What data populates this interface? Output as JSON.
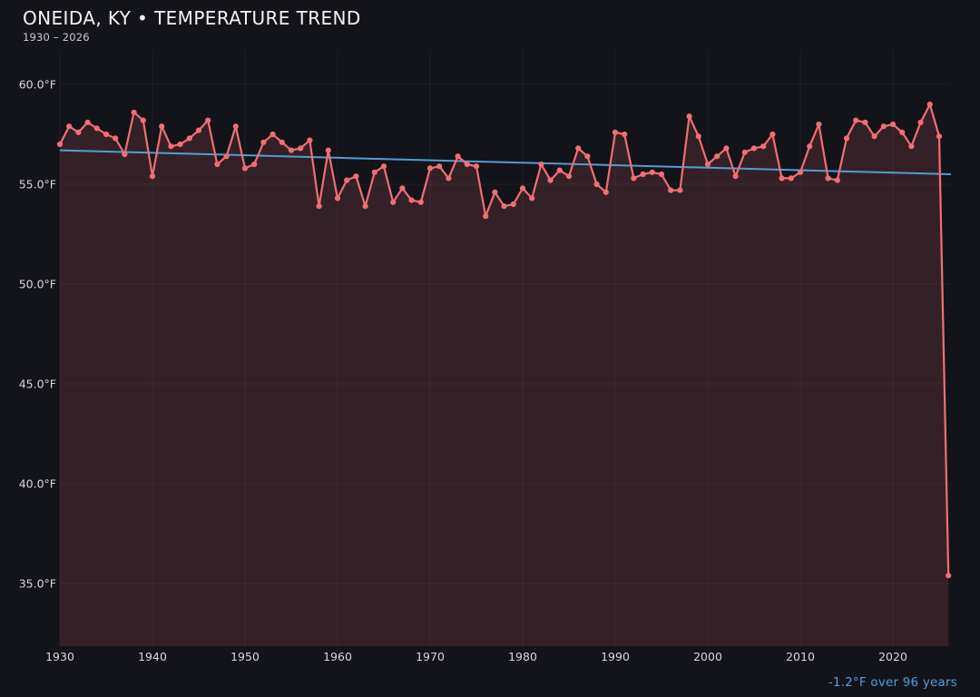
{
  "header": {
    "title": "ONEIDA, KY • TEMPERATURE TREND",
    "subtitle": "1930 – 2026"
  },
  "footer": {
    "trend_note": "-1.2°F over 96 years"
  },
  "colors": {
    "background": "#13131a",
    "series_line": "#ef6f74",
    "area_fill": "rgba(239,111,116,0.15)",
    "trend_line": "#4f9fd4",
    "axis_text": "#d6d6da",
    "title_text": "#f4f4f6",
    "subtitle_text": "#c9c9ce",
    "note_text": "#4da0d8",
    "gridline": "rgba(255,255,255,0.05)"
  },
  "chart_data": {
    "type": "line",
    "title": "ONEIDA, KY • TEMPERATURE TREND",
    "subtitle": "1930 – 2026",
    "xlabel": "",
    "ylabel": "°F",
    "grid": true,
    "legend": "none",
    "year_range": [
      1930,
      2026
    ],
    "x_ticks": [
      1930,
      1940,
      1950,
      1960,
      1970,
      1980,
      1990,
      2000,
      2010,
      2020
    ],
    "y_ticks": [
      {
        "value": 60,
        "label": "60.0°F"
      },
      {
        "value": 55,
        "label": "55.0°F"
      },
      {
        "value": 50,
        "label": "50.0°F"
      },
      {
        "value": 45,
        "label": "45.0°F"
      },
      {
        "value": 40,
        "label": "40.0°F"
      },
      {
        "value": 35,
        "label": "35.0°F"
      }
    ],
    "ylim": [
      31.9,
      61.7
    ],
    "series": [
      {
        "name": "annual-mean-temperature-f",
        "style": "line-with-markers",
        "values": [
          57.0,
          57.9,
          57.6,
          58.1,
          57.8,
          57.5,
          57.3,
          56.5,
          58.6,
          58.2,
          55.4,
          57.9,
          56.9,
          57.0,
          57.3,
          57.7,
          58.2,
          56.0,
          56.4,
          57.9,
          55.8,
          56.0,
          57.1,
          57.5,
          57.1,
          56.7,
          56.8,
          57.2,
          53.9,
          56.7,
          54.3,
          55.2,
          55.4,
          53.9,
          55.6,
          55.9,
          54.1,
          54.8,
          54.2,
          54.1,
          55.8,
          55.9,
          55.3,
          56.4,
          56.0,
          55.9,
          53.4,
          54.6,
          53.9,
          54.0,
          54.8,
          54.3,
          56.0,
          55.2,
          55.7,
          55.4,
          56.8,
          56.4,
          55.0,
          54.6,
          57.6,
          57.5,
          55.3,
          55.5,
          55.6,
          55.5,
          54.7,
          54.7,
          58.4,
          57.4,
          56.0,
          56.4,
          56.8,
          55.4,
          56.6,
          56.8,
          56.9,
          57.5,
          55.3,
          55.3,
          55.6,
          56.9,
          58.0,
          55.3,
          55.2,
          57.3,
          58.2,
          58.1,
          57.4,
          57.9,
          58.0,
          57.6,
          56.9,
          58.1,
          59.0,
          57.4,
          35.4
        ]
      },
      {
        "name": "linear-trend",
        "style": "straight-line",
        "value_start": 56.7,
        "value_end": 55.5,
        "delta_label": "-1.2°F over 96 years"
      }
    ]
  }
}
